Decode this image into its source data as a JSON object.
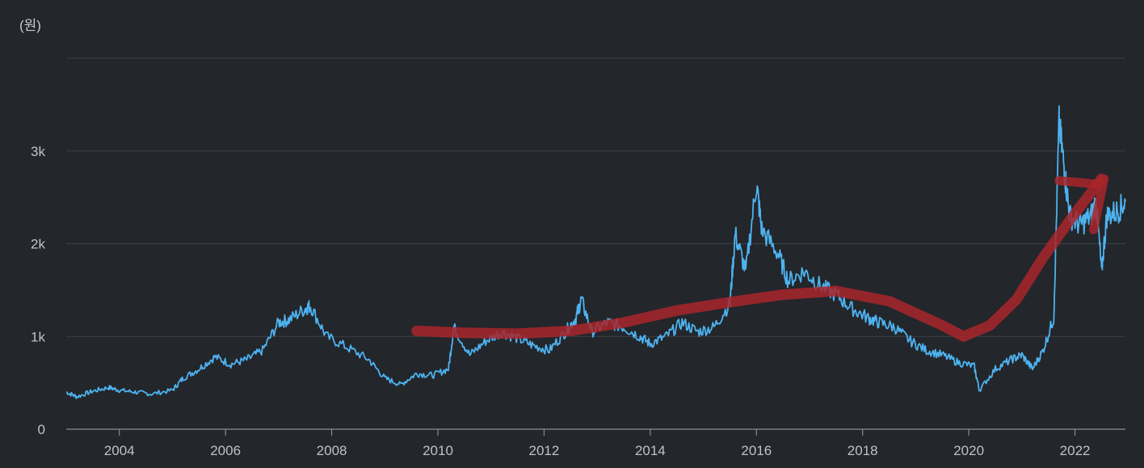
{
  "chart_data": {
    "type": "line",
    "unit_label": "(원)",
    "y_ticks": [
      {
        "value": 0,
        "label": "0"
      },
      {
        "value": 1000,
        "label": "1k"
      },
      {
        "value": 2000,
        "label": "2k"
      },
      {
        "value": 3000,
        "label": "3k"
      },
      {
        "value": 4000,
        "label": ""
      }
    ],
    "x_ticks": [
      2004,
      2006,
      2008,
      2010,
      2012,
      2014,
      2016,
      2018,
      2020,
      2022
    ],
    "xlim": [
      2003.0,
      2022.95
    ],
    "ylim": [
      0,
      4000
    ],
    "grid": true,
    "colors": {
      "line": "#4db3f0",
      "trend": "#a8262c",
      "background": "#23262b",
      "grid": "#3d4046"
    },
    "series": [
      {
        "x": [
          2003.0,
          2003.2,
          2003.5,
          2003.8,
          2004.0,
          2004.3,
          2004.6,
          2005.0,
          2005.2,
          2005.5,
          2005.8,
          2006.1,
          2006.4,
          2006.7,
          2007.0,
          2007.2,
          2007.5,
          2007.6,
          2007.9,
          2008.3,
          2008.7,
          2009.0,
          2009.3,
          2009.6,
          2009.9,
          2010.2,
          2010.3,
          2010.6,
          2010.9,
          2011.2,
          2011.5,
          2011.8,
          2012.1,
          2012.4,
          2012.6,
          2012.7,
          2012.9,
          2013.2,
          2013.5,
          2013.8,
          2014.0,
          2014.3,
          2014.6,
          2014.9,
          2015.2,
          2015.5,
          2015.6,
          2015.8,
          2016.0,
          2016.1,
          2016.4,
          2016.6,
          2016.9,
          2017.2,
          2017.5,
          2017.8,
          2018.1,
          2018.3,
          2018.6,
          2018.9,
          2019.2,
          2019.5,
          2019.8,
          2020.1,
          2020.2,
          2020.5,
          2020.8,
          2021.0,
          2021.2,
          2021.4,
          2021.6,
          2021.7,
          2021.8,
          2021.9,
          2022.1,
          2022.3,
          2022.4,
          2022.5,
          2022.6,
          2022.8,
          2022.95
        ],
        "y": [
          400,
          350,
          410,
          450,
          420,
          400,
          380,
          420,
          550,
          650,
          780,
          700,
          750,
          850,
          1150,
          1180,
          1300,
          1330,
          1000,
          880,
          750,
          550,
          480,
          600,
          580,
          650,
          1100,
          800,
          950,
          1050,
          980,
          900,
          850,
          1050,
          1200,
          1400,
          1050,
          1150,
          1100,
          1000,
          920,
          1000,
          1150,
          1050,
          1100,
          1350,
          2100,
          1700,
          2650,
          2150,
          1900,
          1600,
          1700,
          1550,
          1450,
          1300,
          1200,
          1150,
          1100,
          950,
          850,
          800,
          720,
          680,
          420,
          650,
          750,
          800,
          650,
          850,
          1200,
          3300,
          2800,
          2300,
          2200,
          2300,
          2450,
          1700,
          2300,
          2350,
          2450
        ]
      }
    ],
    "annotation_stroke": {
      "x": [
        2009.6,
        2010.5,
        2011.5,
        2012.5,
        2013.5,
        2014.5,
        2015.5,
        2016.5,
        2017.5,
        2018.5,
        2019.5,
        2019.9,
        2020.4,
        2020.9,
        2021.4,
        2021.9,
        2022.3,
        2022.5
      ],
      "y": [
        1060,
        1040,
        1030,
        1060,
        1150,
        1280,
        1370,
        1450,
        1490,
        1380,
        1120,
        1000,
        1120,
        1400,
        1850,
        2250,
        2550,
        2700
      ],
      "arrow_head": {
        "x": [
          2021.7,
          2022.45,
          2022.55,
          2022.35
        ],
        "y": [
          2680,
          2640,
          2700,
          2150
        ]
      }
    }
  }
}
